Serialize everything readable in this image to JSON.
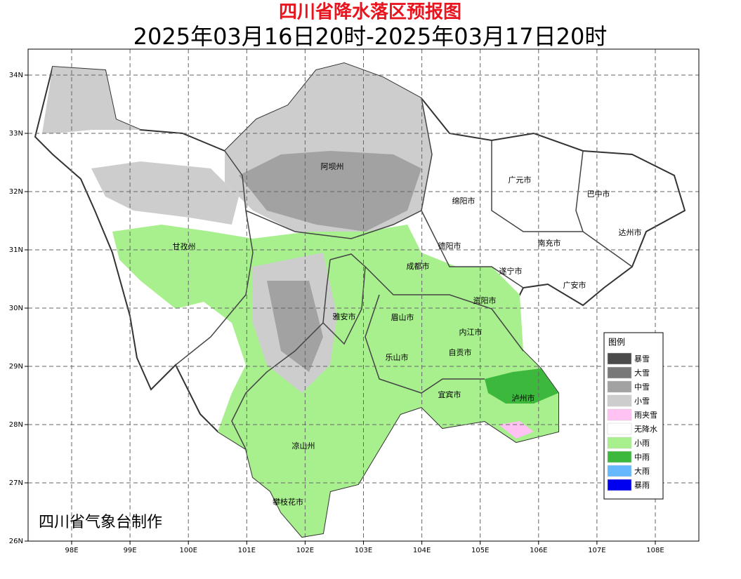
{
  "title": "四川省降水落区预报图",
  "subtitle": "2025年03月16日20时-2025年03月17日20时",
  "credit": "四川省气象台制作",
  "lon_ticks": [
    "98E",
    "99E",
    "100E",
    "101E",
    "102E",
    "103E",
    "104E",
    "105E",
    "106E",
    "107E",
    "108E"
  ],
  "lat_ticks": [
    "26N",
    "27N",
    "28N",
    "29N",
    "30N",
    "31N",
    "32N",
    "33N",
    "34N"
  ],
  "regions": [
    "阿坝州",
    "广元市",
    "巴中市",
    "绵阳市",
    "甘孜州",
    "德阳市",
    "南充市",
    "达州市",
    "成都市",
    "遂宁市",
    "广安市",
    "资阳市",
    "雅安市",
    "眉山市",
    "内江市",
    "自贡市",
    "乐山市",
    "宜宾市",
    "泸州市",
    "凉山州",
    "攀枝花市"
  ],
  "legend": {
    "title": "图例",
    "items": [
      {
        "label": "暴雪",
        "color": "#4a4a4a"
      },
      {
        "label": "大雪",
        "color": "#787878"
      },
      {
        "label": "中雪",
        "color": "#a2a2a2"
      },
      {
        "label": "小雪",
        "color": "#cdcdcd"
      },
      {
        "label": "雨夹雪",
        "color": "#ffc2f2"
      },
      {
        "label": "无降水",
        "color": "#ffffff"
      },
      {
        "label": "小雨",
        "color": "#a8f08e"
      },
      {
        "label": "中雨",
        "color": "#3cb83c"
      },
      {
        "label": "大雨",
        "color": "#66b8ff"
      },
      {
        "label": "暴雨",
        "color": "#0000f0"
      }
    ]
  }
}
